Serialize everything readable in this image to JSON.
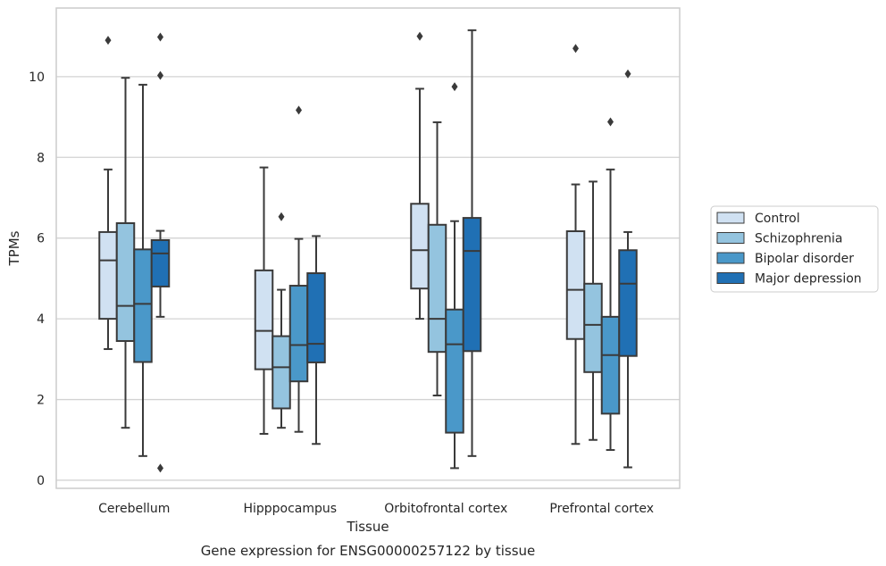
{
  "chart_data": {
    "type": "box",
    "xlabel": "Tissue",
    "ylabel": "TPMs",
    "caption": "Gene expression for ENSG00000257122 by tissue",
    "ylim": [
      -0.2,
      11.7
    ],
    "yticks": [
      "0",
      "2",
      "4",
      "6",
      "8",
      "10"
    ],
    "ytick_values": [
      0,
      2,
      4,
      6,
      8,
      10
    ],
    "grid": true,
    "legend_position": "right",
    "categories": [
      "Cerebellum",
      "Hipppocampus",
      "Orbitofrontal cortex",
      "Prefrontal cortex"
    ],
    "series": [
      {
        "name": "Control",
        "color": "#d0e1f2",
        "boxes": [
          {
            "whislo": 3.25,
            "q1": 4.0,
            "med": 5.45,
            "q3": 6.15,
            "whishi": 7.7,
            "fliers": [
              10.9
            ]
          },
          {
            "whislo": 1.15,
            "q1": 2.75,
            "med": 3.7,
            "q3": 5.2,
            "whishi": 7.75,
            "fliers": []
          },
          {
            "whislo": 4.0,
            "q1": 4.75,
            "med": 5.7,
            "q3": 6.85,
            "whishi": 9.7,
            "fliers": [
              11.0
            ]
          },
          {
            "whislo": 0.9,
            "q1": 3.5,
            "med": 4.72,
            "q3": 6.17,
            "whishi": 7.33,
            "fliers": [
              10.7
            ]
          }
        ]
      },
      {
        "name": "Schizophrenia",
        "color": "#94c4df",
        "boxes": [
          {
            "whislo": 1.3,
            "q1": 3.45,
            "med": 4.32,
            "q3": 6.37,
            "whishi": 9.97,
            "fliers": []
          },
          {
            "whislo": 1.3,
            "q1": 1.78,
            "med": 2.8,
            "q3": 3.57,
            "whishi": 4.72,
            "fliers": [
              6.53
            ]
          },
          {
            "whislo": 2.1,
            "q1": 3.18,
            "med": 4.0,
            "q3": 6.33,
            "whishi": 8.87,
            "fliers": []
          },
          {
            "whislo": 1.0,
            "q1": 2.68,
            "med": 3.85,
            "q3": 4.87,
            "whishi": 7.4,
            "fliers": []
          }
        ]
      },
      {
        "name": "Bipolar disorder",
        "color": "#4a98c9",
        "boxes": [
          {
            "whislo": 0.6,
            "q1": 2.93,
            "med": 4.37,
            "q3": 5.72,
            "whishi": 9.8,
            "fliers": []
          },
          {
            "whislo": 1.2,
            "q1": 2.45,
            "med": 3.35,
            "q3": 4.82,
            "whishi": 5.98,
            "fliers": [
              9.17
            ]
          },
          {
            "whislo": 0.3,
            "q1": 1.18,
            "med": 3.37,
            "q3": 4.23,
            "whishi": 6.42,
            "fliers": [
              9.75
            ]
          },
          {
            "whislo": 0.75,
            "q1": 1.65,
            "med": 3.1,
            "q3": 4.05,
            "whishi": 7.7,
            "fliers": [
              8.88
            ]
          }
        ]
      },
      {
        "name": "Major depression",
        "color": "#2070b4",
        "boxes": [
          {
            "whislo": 4.05,
            "q1": 4.8,
            "med": 5.62,
            "q3": 5.95,
            "whishi": 6.18,
            "fliers": [
              10.98,
              10.03,
              0.3
            ]
          },
          {
            "whislo": 0.9,
            "q1": 2.92,
            "med": 3.38,
            "q3": 5.13,
            "whishi": 6.05,
            "fliers": []
          },
          {
            "whislo": 0.6,
            "q1": 3.2,
            "med": 5.68,
            "q3": 6.5,
            "whishi": 11.15,
            "fliers": []
          },
          {
            "whislo": 0.32,
            "q1": 3.08,
            "med": 4.87,
            "q3": 5.7,
            "whishi": 6.15,
            "fliers": [
              10.07
            ]
          }
        ]
      }
    ]
  }
}
